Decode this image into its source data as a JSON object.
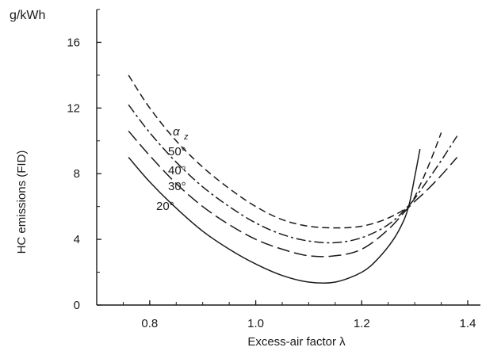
{
  "chart_data": {
    "type": "line",
    "unit_label": "g/kWh",
    "ylabel": "HC emissions (FID)",
    "xlabel": "Excess-air factor λ",
    "legend_title": "αz",
    "xlim": [
      0.7,
      1.4
    ],
    "ylim": [
      0,
      18
    ],
    "x_ticks": [
      0.8,
      1.0,
      1.2,
      1.4
    ],
    "x_tick_labels": [
      "0.8",
      "1.0",
      "1.2",
      "1.4"
    ],
    "y_ticks": [
      0,
      4,
      8,
      12,
      16
    ],
    "y_tick_labels": [
      "0",
      "4",
      "8",
      "12",
      "16"
    ],
    "grid": false,
    "series": [
      {
        "name": "50°",
        "dash": "dashed",
        "x": [
          0.76,
          0.8,
          0.85,
          0.9,
          0.95,
          1.0,
          1.05,
          1.1,
          1.15,
          1.2,
          1.25,
          1.29,
          1.31,
          1.33,
          1.35
        ],
        "y": [
          14.0,
          12.0,
          10.0,
          8.4,
          7.1,
          6.0,
          5.2,
          4.8,
          4.7,
          4.8,
          5.3,
          6.1,
          7.3,
          8.8,
          10.5
        ]
      },
      {
        "name": "40°",
        "dash": "dash-dot",
        "x": [
          0.76,
          0.8,
          0.85,
          0.9,
          0.95,
          1.0,
          1.05,
          1.1,
          1.15,
          1.2,
          1.25,
          1.29,
          1.32,
          1.35,
          1.38
        ],
        "y": [
          12.2,
          10.5,
          8.7,
          7.2,
          6.0,
          5.0,
          4.3,
          3.9,
          3.8,
          4.1,
          4.9,
          6.1,
          7.4,
          8.8,
          10.3
        ]
      },
      {
        "name": "30°",
        "dash": "long-dash",
        "x": [
          0.76,
          0.8,
          0.85,
          0.9,
          0.95,
          1.0,
          1.05,
          1.1,
          1.15,
          1.2,
          1.25,
          1.29,
          1.32,
          1.35,
          1.38
        ],
        "y": [
          10.6,
          9.1,
          7.4,
          6.0,
          4.9,
          4.0,
          3.4,
          3.0,
          3.0,
          3.4,
          4.6,
          6.0,
          6.9,
          7.9,
          9.0
        ]
      },
      {
        "name": "20°",
        "dash": "solid",
        "x": [
          0.76,
          0.8,
          0.85,
          0.9,
          0.95,
          1.0,
          1.05,
          1.1,
          1.15,
          1.2,
          1.23,
          1.26,
          1.28,
          1.29,
          1.3,
          1.31
        ],
        "y": [
          9.0,
          7.5,
          5.9,
          4.5,
          3.4,
          2.5,
          1.8,
          1.4,
          1.4,
          2.0,
          2.8,
          4.0,
          5.2,
          6.2,
          7.8,
          9.5
        ]
      }
    ]
  }
}
